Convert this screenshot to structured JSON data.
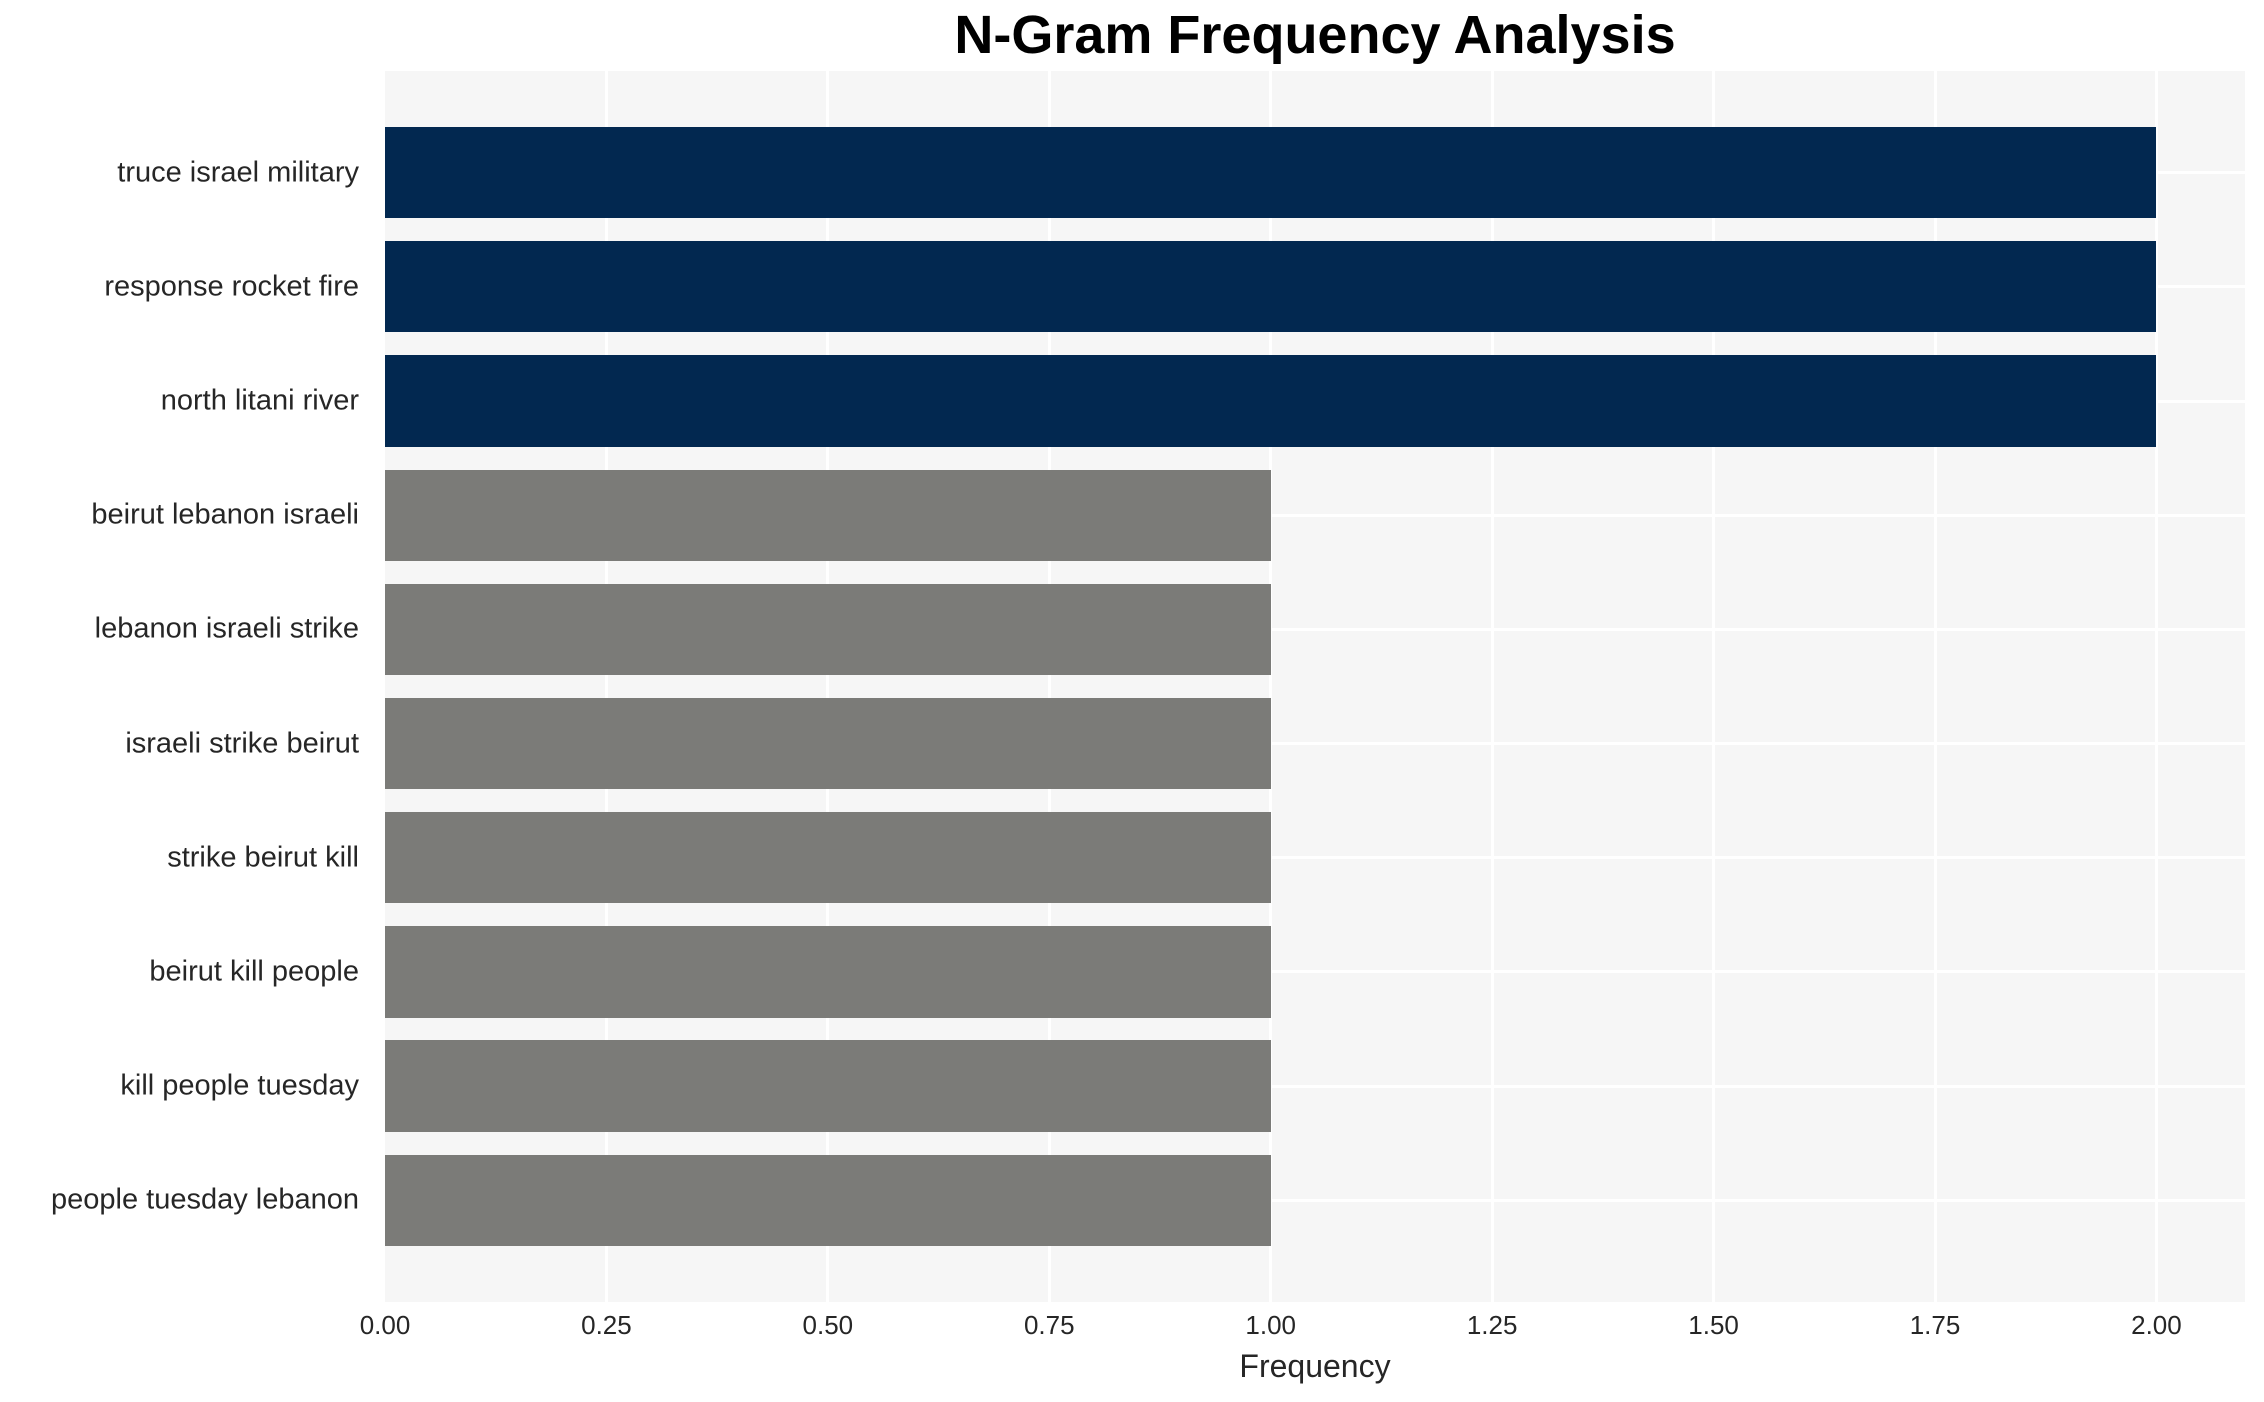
{
  "chart_data": {
    "type": "bar",
    "orientation": "horizontal",
    "title": "N-Gram Frequency Analysis",
    "xlabel": "Frequency",
    "ylabel": "",
    "categories": [
      "truce israel military",
      "response rocket fire",
      "north litani river",
      "beirut lebanon israeli",
      "lebanon israeli strike",
      "israeli strike beirut",
      "strike beirut kill",
      "beirut kill people",
      "kill people tuesday",
      "people tuesday lebanon"
    ],
    "values": [
      2,
      2,
      2,
      1,
      1,
      1,
      1,
      1,
      1,
      1
    ],
    "bar_colors": [
      "#022850",
      "#022850",
      "#022850",
      "#7b7b78",
      "#7b7b78",
      "#7b7b78",
      "#7b7b78",
      "#7b7b78",
      "#7b7b78",
      "#7b7b78"
    ],
    "xlim": [
      0,
      2.1
    ],
    "xticks": [
      0.0,
      0.25,
      0.5,
      0.75,
      1.0,
      1.25,
      1.5,
      1.75,
      2.0
    ],
    "xtick_labels": [
      "0.00",
      "0.25",
      "0.50",
      "0.75",
      "1.00",
      "1.25",
      "1.50",
      "1.75",
      "2.00"
    ],
    "grid": true,
    "legend": false,
    "colors": {
      "plot_background": "#f6f6f6",
      "grid_color": "#ffffff",
      "figure_background": "#ffffff",
      "text_color": "#262626",
      "title_color": "#000000",
      "bar_high": "#022850",
      "bar_low": "#7b7b78"
    }
  }
}
